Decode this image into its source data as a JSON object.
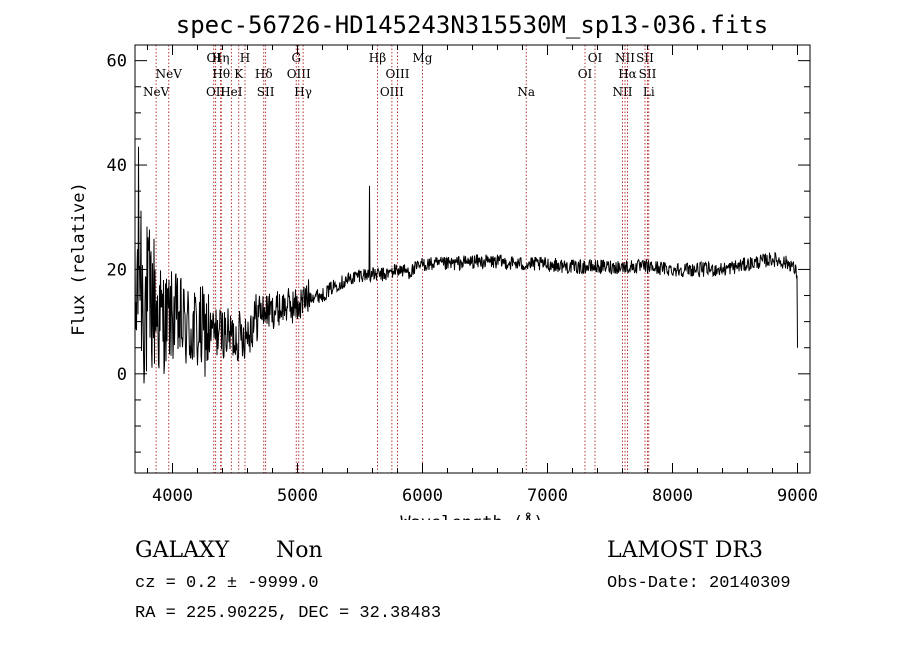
{
  "chart_data": {
    "type": "line",
    "title": "spec-56726-HD145243N315530M_sp13-036.fits",
    "xlabel": "Wavelength (Å)",
    "ylabel": "Flux (relative)",
    "xlim": [
      3700,
      9100
    ],
    "ylim": [
      -19,
      63
    ],
    "xticks": [
      4000,
      5000,
      6000,
      7000,
      8000,
      9000
    ],
    "yticks": [
      0,
      20,
      40,
      60
    ],
    "x_minor_step": 200,
    "y_minor_step": 5,
    "line_color": "#000000",
    "marker_color": "#b22222",
    "spectrum_anchors": [
      [
        3700,
        6
      ],
      [
        3730,
        25
      ],
      [
        3760,
        16
      ],
      [
        3800,
        12
      ],
      [
        3850,
        14
      ],
      [
        3900,
        10
      ],
      [
        4000,
        11
      ],
      [
        4100,
        9
      ],
      [
        4200,
        8
      ],
      [
        4300,
        8
      ],
      [
        4400,
        8
      ],
      [
        4500,
        7
      ],
      [
        4600,
        8
      ],
      [
        4700,
        12
      ],
      [
        4800,
        12
      ],
      [
        4900,
        13
      ],
      [
        5000,
        13
      ],
      [
        5100,
        15
      ],
      [
        5200,
        15
      ],
      [
        5300,
        17
      ],
      [
        5400,
        18
      ],
      [
        5500,
        19
      ],
      [
        5600,
        19
      ],
      [
        5700,
        19
      ],
      [
        5800,
        20
      ],
      [
        5900,
        19.5
      ],
      [
        6000,
        21
      ],
      [
        6200,
        21
      ],
      [
        6400,
        21.5
      ],
      [
        6600,
        21.5
      ],
      [
        6800,
        21
      ],
      [
        7000,
        21
      ],
      [
        7200,
        20.5
      ],
      [
        7400,
        20.5
      ],
      [
        7600,
        20.5
      ],
      [
        7800,
        20.5
      ],
      [
        8000,
        20
      ],
      [
        8200,
        20
      ],
      [
        8400,
        20
      ],
      [
        8600,
        21
      ],
      [
        8800,
        22
      ],
      [
        8950,
        21
      ],
      [
        9000,
        19
      ]
    ],
    "spikes": [
      {
        "x": 5577,
        "y": 36
      },
      {
        "x": 9000,
        "y": 5
      }
    ],
    "markers": [
      {
        "wl": 3869,
        "labels": [
          "NeV"
        ],
        "row": 3
      },
      {
        "wl": 3970,
        "labels": [
          "NeV"
        ],
        "row": 2
      },
      {
        "wl": 4330,
        "labels": [
          "OI"
        ],
        "row": 1
      },
      {
        "wl": 4345,
        "labels": [
          "OII"
        ],
        "row": 3
      },
      {
        "wl": 4385,
        "labels": [
          "Hη"
        ],
        "row": 1
      },
      {
        "wl": 4390,
        "labels": [
          "Hθ"
        ],
        "row": 2
      },
      {
        "wl": 4471,
        "labels": [
          "HeI"
        ],
        "row": 3
      },
      {
        "wl": 4530,
        "labels": [
          "K"
        ],
        "row": 2
      },
      {
        "wl": 4580,
        "labels": [
          "H"
        ],
        "row": 1
      },
      {
        "wl": 4730,
        "labels": [
          "Hδ"
        ],
        "row": 2
      },
      {
        "wl": 4745,
        "labels": [
          "SII"
        ],
        "row": 3
      },
      {
        "wl": 4990,
        "labels": [
          "G"
        ],
        "row": 1
      },
      {
        "wl": 5010,
        "labels": [
          "OIII"
        ],
        "row": 2
      },
      {
        "wl": 5045,
        "labels": [
          "Hγ"
        ],
        "row": 3
      },
      {
        "wl": 5640,
        "labels": [
          "Hβ"
        ],
        "row": 1
      },
      {
        "wl": 5755,
        "labels": [
          "OIII"
        ],
        "row": 3
      },
      {
        "wl": 5800,
        "labels": [
          "OIII"
        ],
        "row": 2
      },
      {
        "wl": 6000,
        "labels": [
          "Mg"
        ],
        "row": 1
      },
      {
        "wl": 6830,
        "labels": [
          "Na"
        ],
        "row": 3
      },
      {
        "wl": 7300,
        "labels": [
          "OI"
        ],
        "row": 2
      },
      {
        "wl": 7380,
        "labels": [
          "OI"
        ],
        "row": 1
      },
      {
        "wl": 7600,
        "labels": [
          "NII"
        ],
        "row": 3
      },
      {
        "wl": 7620,
        "labels": [
          "NII"
        ],
        "row": 1
      },
      {
        "wl": 7640,
        "labels": [
          "Hα"
        ],
        "row": 2
      },
      {
        "wl": 7780,
        "labels": [
          "SII"
        ],
        "row": 1
      },
      {
        "wl": 7800,
        "labels": [
          "SII"
        ],
        "row": 2
      },
      {
        "wl": 7810,
        "labels": [
          "Li"
        ],
        "row": 3
      }
    ]
  },
  "info": {
    "object_class": "GALAXY",
    "object_subclass": "Non",
    "survey": "LAMOST DR3",
    "cz_line": "cz = 0.2 ± -9999.0",
    "obs_date_line": "Obs-Date: 20140309",
    "coords_line": "RA = 225.90225, DEC =  32.38483"
  }
}
